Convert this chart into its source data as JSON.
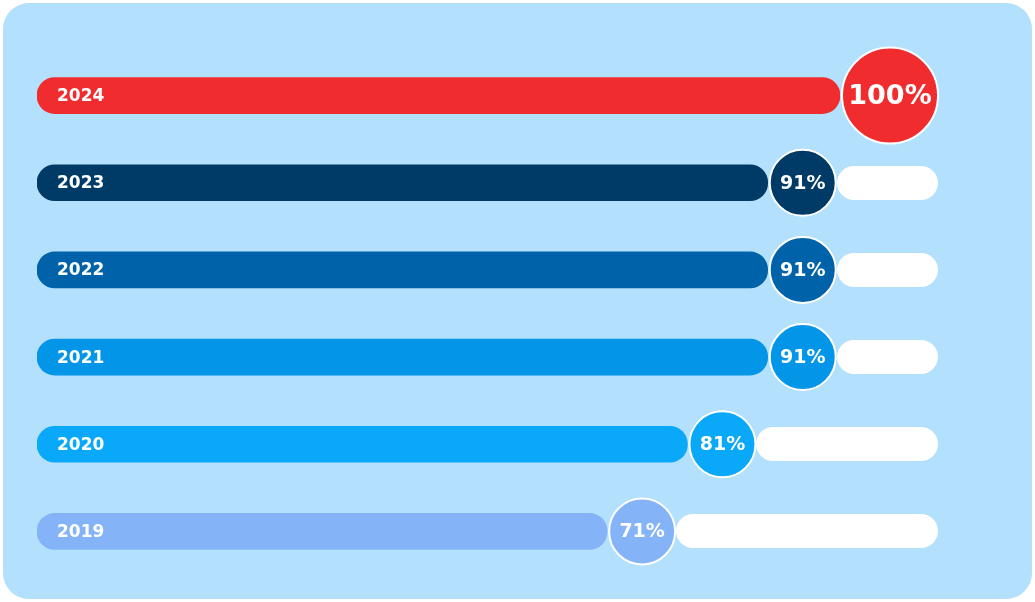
{
  "chart_data": {
    "type": "bar",
    "orientation": "horizontal",
    "categories": [
      "2024",
      "2023",
      "2022",
      "2021",
      "2020",
      "2019"
    ],
    "values": [
      100,
      91,
      91,
      91,
      81,
      71
    ],
    "colors": [
      "#f02c2f",
      "#003a66",
      "#0062a8",
      "#0396e8",
      "#0aa8f8",
      "#85b3f8"
    ],
    "value_labels": [
      "100%",
      "91%",
      "91%",
      "91%",
      "81%",
      "71%"
    ],
    "legend": false
  }
}
